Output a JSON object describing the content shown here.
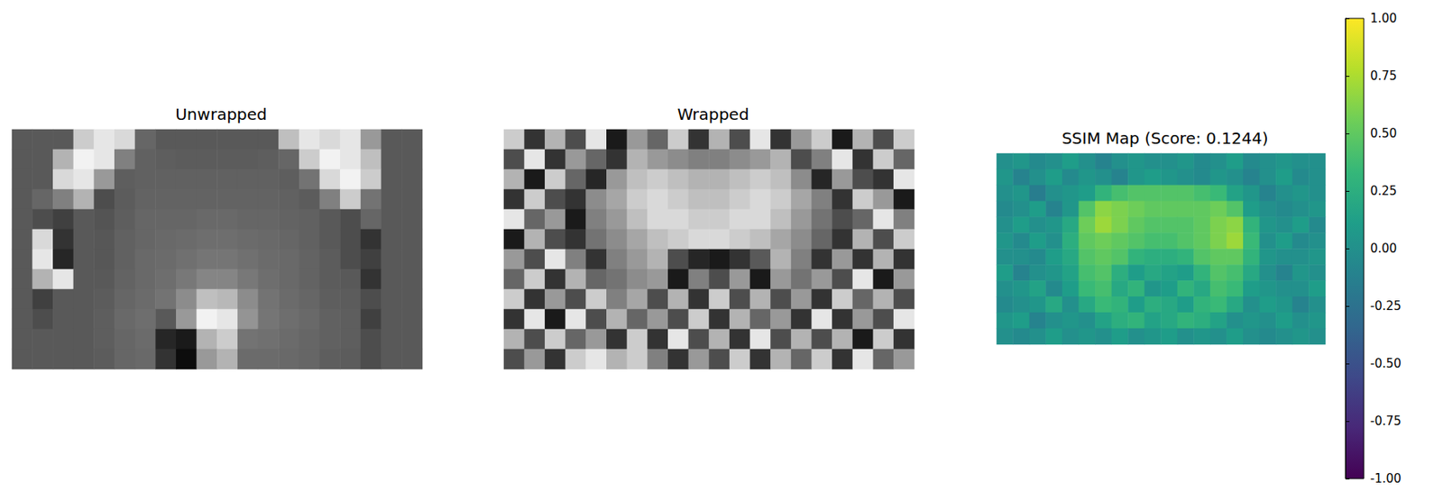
{
  "chart_data": [
    {
      "type": "heatmap",
      "title": "Unwrapped",
      "color": "gray",
      "color_range": [
        0,
        1
      ],
      "tick_labels": false,
      "cells": [
        [
          0.35,
          0.35,
          0.35,
          0.8,
          0.9,
          0.85,
          0.4,
          0.35,
          0.35,
          0.35,
          0.35,
          0.35,
          0.35,
          0.75,
          0.9,
          0.85,
          0.9,
          0.6,
          0.35,
          0.35
        ],
        [
          0.35,
          0.35,
          0.7,
          0.95,
          0.9,
          0.5,
          0.38,
          0.37,
          0.36,
          0.36,
          0.36,
          0.36,
          0.37,
          0.4,
          0.8,
          0.95,
          0.9,
          0.75,
          0.35,
          0.35
        ],
        [
          0.35,
          0.35,
          0.85,
          0.9,
          0.6,
          0.37,
          0.38,
          0.38,
          0.38,
          0.38,
          0.38,
          0.38,
          0.38,
          0.37,
          0.45,
          0.85,
          0.95,
          0.8,
          0.35,
          0.35
        ],
        [
          0.35,
          0.4,
          0.5,
          0.7,
          0.3,
          0.36,
          0.39,
          0.39,
          0.39,
          0.39,
          0.39,
          0.39,
          0.39,
          0.38,
          0.36,
          0.5,
          0.8,
          0.45,
          0.35,
          0.35
        ],
        [
          0.35,
          0.3,
          0.25,
          0.35,
          0.33,
          0.37,
          0.4,
          0.4,
          0.4,
          0.41,
          0.41,
          0.4,
          0.4,
          0.39,
          0.38,
          0.35,
          0.3,
          0.4,
          0.35,
          0.35
        ],
        [
          0.35,
          0.85,
          0.2,
          0.35,
          0.34,
          0.38,
          0.4,
          0.41,
          0.42,
          0.43,
          0.43,
          0.42,
          0.41,
          0.4,
          0.38,
          0.35,
          0.3,
          0.2,
          0.35,
          0.35
        ],
        [
          0.35,
          0.9,
          0.15,
          0.35,
          0.34,
          0.38,
          0.41,
          0.42,
          0.44,
          0.46,
          0.46,
          0.44,
          0.42,
          0.41,
          0.39,
          0.36,
          0.3,
          0.25,
          0.35,
          0.35
        ],
        [
          0.35,
          0.7,
          0.9,
          0.35,
          0.35,
          0.39,
          0.41,
          0.43,
          0.47,
          0.52,
          0.52,
          0.47,
          0.43,
          0.41,
          0.39,
          0.36,
          0.35,
          0.2,
          0.35,
          0.35
        ],
        [
          0.35,
          0.25,
          0.35,
          0.35,
          0.36,
          0.4,
          0.42,
          0.45,
          0.55,
          0.75,
          0.72,
          0.55,
          0.45,
          0.42,
          0.4,
          0.37,
          0.36,
          0.3,
          0.35,
          0.35
        ],
        [
          0.35,
          0.3,
          0.35,
          0.35,
          0.37,
          0.41,
          0.43,
          0.35,
          0.6,
          0.95,
          0.9,
          0.58,
          0.46,
          0.43,
          0.41,
          0.38,
          0.37,
          0.25,
          0.35,
          0.35
        ],
        [
          0.35,
          0.35,
          0.35,
          0.35,
          0.37,
          0.4,
          0.42,
          0.15,
          0.1,
          0.7,
          0.8,
          0.45,
          0.44,
          0.42,
          0.4,
          0.38,
          0.37,
          0.3,
          0.35,
          0.35
        ],
        [
          0.35,
          0.35,
          0.35,
          0.35,
          0.36,
          0.4,
          0.41,
          0.2,
          0.05,
          0.6,
          0.7,
          0.42,
          0.42,
          0.41,
          0.4,
          0.37,
          0.36,
          0.3,
          0.35,
          0.35
        ]
      ]
    },
    {
      "type": "heatmap",
      "title": "Wrapped",
      "color": "gray",
      "color_range": [
        0,
        1
      ],
      "tick_labels": false,
      "cells": [
        [
          0.8,
          0.2,
          0.7,
          0.3,
          0.9,
          0.1,
          0.6,
          0.4,
          0.8,
          0.2,
          0.7,
          0.3,
          0.9,
          0.2,
          0.6,
          0.8,
          0.1,
          0.7,
          0.3,
          0.8
        ],
        [
          0.3,
          0.9,
          0.2,
          0.6,
          0.4,
          0.2,
          0.7,
          0.6,
          0.55,
          0.5,
          0.5,
          0.55,
          0.6,
          0.7,
          0.3,
          0.5,
          0.9,
          0.2,
          0.8,
          0.4
        ],
        [
          0.7,
          0.1,
          0.8,
          0.4,
          0.15,
          0.6,
          0.75,
          0.8,
          0.75,
          0.7,
          0.7,
          0.75,
          0.8,
          0.75,
          0.55,
          0.15,
          0.6,
          0.3,
          0.2,
          0.9
        ],
        [
          0.2,
          0.8,
          0.3,
          0.2,
          0.55,
          0.65,
          0.8,
          0.85,
          0.8,
          0.75,
          0.75,
          0.8,
          0.85,
          0.8,
          0.65,
          0.5,
          0.2,
          0.8,
          0.6,
          0.1
        ],
        [
          0.9,
          0.4,
          0.6,
          0.1,
          0.5,
          0.6,
          0.75,
          0.85,
          0.85,
          0.8,
          0.8,
          0.85,
          0.85,
          0.75,
          0.6,
          0.45,
          0.3,
          0.4,
          0.9,
          0.5
        ],
        [
          0.1,
          0.7,
          0.3,
          0.2,
          0.45,
          0.55,
          0.65,
          0.75,
          0.8,
          0.85,
          0.85,
          0.8,
          0.75,
          0.65,
          0.55,
          0.4,
          0.2,
          0.7,
          0.3,
          0.8
        ],
        [
          0.6,
          0.3,
          0.9,
          0.5,
          0.2,
          0.5,
          0.6,
          0.7,
          0.3,
          0.15,
          0.1,
          0.2,
          0.35,
          0.7,
          0.5,
          0.2,
          0.6,
          0.2,
          0.7,
          0.2
        ],
        [
          0.4,
          0.8,
          0.2,
          0.7,
          0.4,
          0.45,
          0.55,
          0.6,
          0.1,
          0.5,
          0.3,
          0.6,
          0.1,
          0.6,
          0.45,
          0.6,
          0.3,
          0.9,
          0.1,
          0.6
        ],
        [
          0.8,
          0.2,
          0.6,
          0.3,
          0.8,
          0.5,
          0.65,
          0.3,
          0.7,
          0.2,
          0.8,
          0.3,
          0.7,
          0.3,
          0.6,
          0.2,
          0.8,
          0.4,
          0.7,
          0.3
        ],
        [
          0.2,
          0.9,
          0.1,
          0.9,
          0.3,
          0.7,
          0.4,
          0.6,
          0.3,
          0.8,
          0.2,
          0.7,
          0.4,
          0.6,
          0.2,
          0.9,
          0.2,
          0.6,
          0.3,
          0.9
        ],
        [
          0.7,
          0.3,
          0.8,
          0.4,
          0.6,
          0.2,
          0.8,
          0.2,
          0.9,
          0.3,
          0.7,
          0.2,
          0.9,
          0.3,
          0.7,
          0.3,
          0.7,
          0.1,
          0.8,
          0.2
        ],
        [
          0.3,
          0.6,
          0.2,
          0.8,
          0.9,
          0.7,
          0.8,
          0.5,
          0.2,
          0.6,
          0.3,
          0.8,
          0.2,
          0.7,
          0.4,
          0.8,
          0.2,
          0.9,
          0.4,
          0.6
        ]
      ]
    },
    {
      "type": "heatmap",
      "title": "SSIM Map (Score: 0.1244)",
      "color": "viridis",
      "color_range": [
        -1,
        1
      ],
      "tick_labels": false,
      "colorbar_ticks": [
        {
          "value": -1,
          "label": "-1.00"
        },
        -0.75,
        {
          "value": -0.5,
          "label": "-0.50"
        },
        -0.25,
        {
          "value": 0,
          "label": "0.00"
        },
        0.25,
        {
          "value": 0.5,
          "label": "0.50"
        },
        0.75,
        {
          "value": 1,
          "label": "1.00"
        }
      ],
      "cells": [
        [
          0.0,
          0.05,
          -0.05,
          0.0,
          0.1,
          0.0,
          -0.1,
          0.0,
          0.05,
          0.0,
          0.0,
          0.05,
          -0.05,
          0.0,
          0.1,
          -0.05,
          0.0,
          0.05,
          0.0,
          0.0
        ],
        [
          0.05,
          -0.1,
          0.0,
          0.1,
          -0.05,
          0.05,
          0.0,
          -0.1,
          0.05,
          0.1,
          0.05,
          0.0,
          -0.05,
          0.05,
          0.0,
          -0.1,
          0.0,
          0.1,
          -0.05,
          0.0
        ],
        [
          0.0,
          0.05,
          -0.15,
          0.0,
          0.05,
          0.1,
          0.3,
          0.4,
          0.45,
          0.45,
          0.45,
          0.45,
          0.4,
          0.35,
          0.15,
          0.05,
          -0.1,
          0.0,
          0.05,
          0.0
        ],
        [
          -0.05,
          0.0,
          0.1,
          -0.1,
          0.05,
          0.45,
          0.65,
          0.6,
          0.55,
          0.5,
          0.5,
          0.5,
          0.5,
          0.55,
          0.45,
          0.1,
          0.0,
          -0.05,
          0.0,
          0.05
        ],
        [
          0.0,
          0.1,
          0.0,
          0.05,
          0.2,
          0.55,
          0.7,
          0.6,
          0.5,
          0.45,
          0.45,
          0.45,
          0.5,
          0.6,
          0.65,
          0.3,
          0.05,
          0.0,
          0.1,
          -0.05
        ],
        [
          0.05,
          -0.05,
          0.1,
          0.0,
          0.25,
          0.5,
          0.55,
          0.5,
          0.45,
          0.4,
          0.4,
          0.45,
          0.5,
          0.6,
          0.7,
          0.35,
          0.0,
          0.1,
          -0.05,
          0.0
        ],
        [
          0.0,
          0.0,
          -0.05,
          0.1,
          0.2,
          0.45,
          0.5,
          0.45,
          0.3,
          0.25,
          0.25,
          0.3,
          0.45,
          0.5,
          0.5,
          0.3,
          0.05,
          0.0,
          0.0,
          0.05
        ],
        [
          0.1,
          -0.1,
          0.0,
          0.05,
          0.15,
          0.4,
          0.45,
          0.25,
          0.1,
          0.2,
          0.15,
          0.1,
          0.3,
          0.45,
          0.4,
          0.2,
          0.0,
          -0.1,
          0.05,
          0.0
        ],
        [
          0.0,
          0.05,
          0.15,
          -0.05,
          0.1,
          0.35,
          0.4,
          0.2,
          0.3,
          0.05,
          0.1,
          0.3,
          0.2,
          0.4,
          0.35,
          0.1,
          0.05,
          0.0,
          0.0,
          0.1
        ],
        [
          -0.05,
          0.0,
          0.05,
          0.2,
          0.0,
          0.2,
          0.35,
          0.3,
          0.1,
          0.25,
          0.2,
          0.1,
          0.3,
          0.35,
          0.2,
          0.0,
          0.1,
          0.05,
          -0.1,
          0.0
        ],
        [
          0.05,
          0.1,
          -0.1,
          0.0,
          0.05,
          0.0,
          0.15,
          0.25,
          0.3,
          0.15,
          0.2,
          0.3,
          0.25,
          0.15,
          0.0,
          0.05,
          0.0,
          0.1,
          0.0,
          0.05
        ],
        [
          0.0,
          -0.05,
          0.0,
          0.1,
          0.0,
          0.05,
          0.0,
          0.1,
          0.0,
          0.05,
          0.1,
          0.0,
          0.05,
          0.0,
          0.1,
          0.0,
          -0.05,
          0.0,
          0.05,
          0.0
        ]
      ]
    }
  ]
}
